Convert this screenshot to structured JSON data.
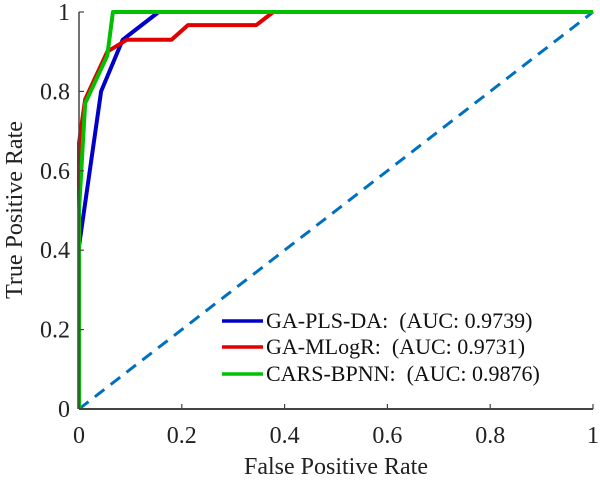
{
  "chart_data": {
    "type": "line",
    "title": "",
    "xlabel": "False Positive Rate",
    "ylabel": "True Positive Rate",
    "xlim": [
      0,
      1
    ],
    "ylim": [
      0,
      1
    ],
    "xticks": [
      0,
      0.2,
      0.4,
      0.6,
      0.8,
      1
    ],
    "yticks": [
      0,
      0.2,
      0.4,
      0.6,
      0.8,
      1
    ],
    "xtick_labels": [
      "0",
      "0.2",
      "0.4",
      "0.6",
      "0.8",
      "1"
    ],
    "ytick_labels": [
      "0",
      "0.2",
      "0.4",
      "0.6",
      "0.8",
      "1"
    ],
    "grid": false,
    "legend_position": "bottom-right",
    "series": [
      {
        "name": "GA-PLS-DA:",
        "label": "GA-PLS-DA:  (AUC: 0.9739)",
        "auc": "0.9739",
        "color": "#0000C8",
        "x": [
          0,
          0,
          0.043,
          0.085,
          0.155,
          1
        ],
        "y": [
          0,
          0.41,
          0.8,
          0.93,
          1,
          1
        ]
      },
      {
        "name": "GA-MLogR:",
        "label": "GA-MLogR:  (AUC: 0.9731)",
        "auc": "0.9731",
        "color": "#E00000",
        "x": [
          0,
          0,
          0,
          0.012,
          0.055,
          0.093,
          0.18,
          0.212,
          0.345,
          0.378,
          1
        ],
        "y": [
          0,
          0.55,
          0.67,
          0.78,
          0.9,
          0.93,
          0.93,
          0.967,
          0.967,
          1,
          1
        ]
      },
      {
        "name": "CARS-BPNN:",
        "label": "CARS-BPNN:  (AUC: 0.9876)",
        "auc": "0.9876",
        "color": "#00C000",
        "x": [
          0,
          0,
          0.012,
          0.055,
          0.066,
          1
        ],
        "y": [
          0,
          0.5,
          0.77,
          0.89,
          1,
          1
        ]
      }
    ],
    "reference_line": {
      "name": "chance",
      "style": "dashed",
      "color": "#0070C0",
      "x": [
        0,
        1
      ],
      "y": [
        0,
        1
      ]
    }
  }
}
